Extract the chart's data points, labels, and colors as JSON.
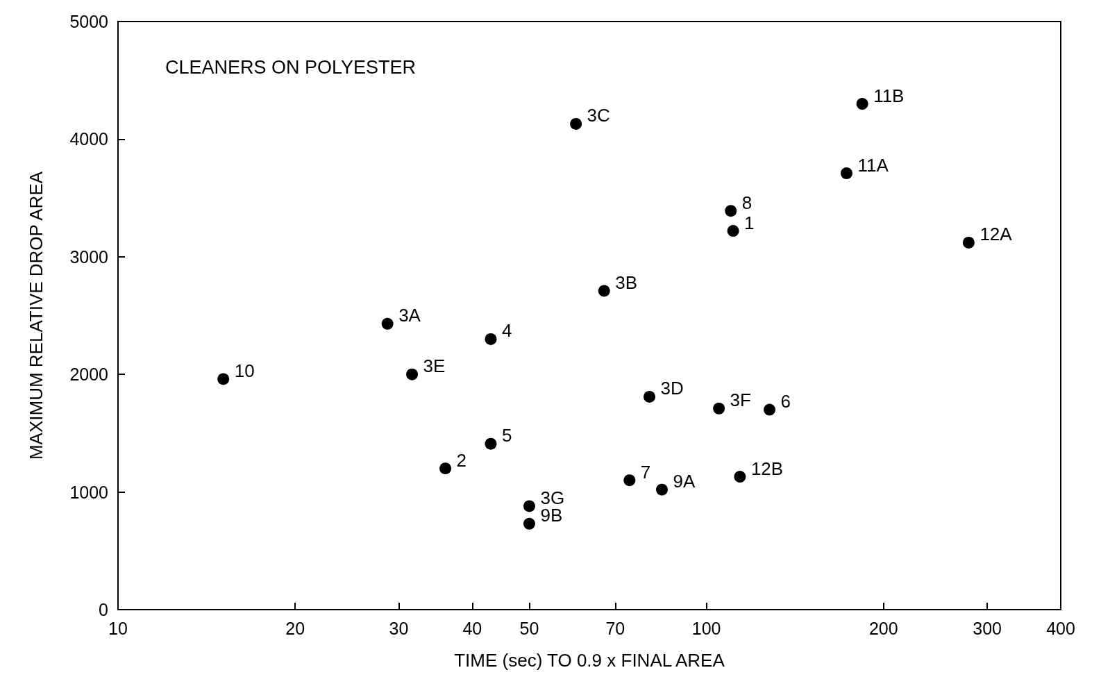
{
  "chart_data": {
    "type": "scatter",
    "title": "CLEANERS ON POLYESTER",
    "xlabel": "TIME (sec) TO 0.9 x FINAL AREA",
    "ylabel": "MAXIMUM RELATIVE DROP AREA",
    "log": "x",
    "xlim": [
      10,
      400
    ],
    "xticks": [
      10,
      20,
      30,
      40,
      50,
      70,
      100,
      200,
      300,
      400
    ],
    "ylim": [
      0,
      5000
    ],
    "yticks": [
      0,
      1000,
      2000,
      3000,
      4000,
      5000
    ],
    "marker": "circle",
    "series": [
      {
        "color": "#000000",
        "x": [
          15.1,
          28.7,
          31.6,
          36,
          43,
          43,
          50,
          50,
          60,
          67,
          74,
          80,
          84,
          105,
          110,
          111,
          114,
          128,
          173,
          184,
          279
        ],
        "values": [
          1960,
          2430,
          2000,
          1200,
          2300,
          1410,
          880,
          730,
          4130,
          2710,
          1100,
          1810,
          1020,
          1710,
          3390,
          3220,
          1130,
          1700,
          3710,
          4300,
          3120
        ]
      }
    ],
    "annotations": [
      {
        "text": "10",
        "x": 15.1,
        "y": 1960
      },
      {
        "text": "3A",
        "x": 28.7,
        "y": 2430
      },
      {
        "text": "3E",
        "x": 31.6,
        "y": 2000
      },
      {
        "text": "2",
        "x": 36,
        "y": 1200
      },
      {
        "text": "4",
        "x": 43,
        "y": 2300
      },
      {
        "text": "5",
        "x": 43,
        "y": 1410
      },
      {
        "text": "3G",
        "x": 50,
        "y": 880
      },
      {
        "text": "9B",
        "x": 50,
        "y": 730
      },
      {
        "text": "3C",
        "x": 60,
        "y": 4130
      },
      {
        "text": "3B",
        "x": 67,
        "y": 2710
      },
      {
        "text": "7",
        "x": 74,
        "y": 1100
      },
      {
        "text": "3D",
        "x": 80,
        "y": 1810
      },
      {
        "text": "9A",
        "x": 84,
        "y": 1020
      },
      {
        "text": "3F",
        "x": 105,
        "y": 1710
      },
      {
        "text": "8",
        "x": 110,
        "y": 3390
      },
      {
        "text": "1",
        "x": 111,
        "y": 3220
      },
      {
        "text": "12B",
        "x": 114,
        "y": 1130
      },
      {
        "text": "6",
        "x": 128,
        "y": 1700
      },
      {
        "text": "11A",
        "x": 173,
        "y": 3710
      },
      {
        "text": "11B",
        "x": 184,
        "y": 4300
      },
      {
        "text": "12A",
        "x": 279,
        "y": 3120
      }
    ]
  }
}
